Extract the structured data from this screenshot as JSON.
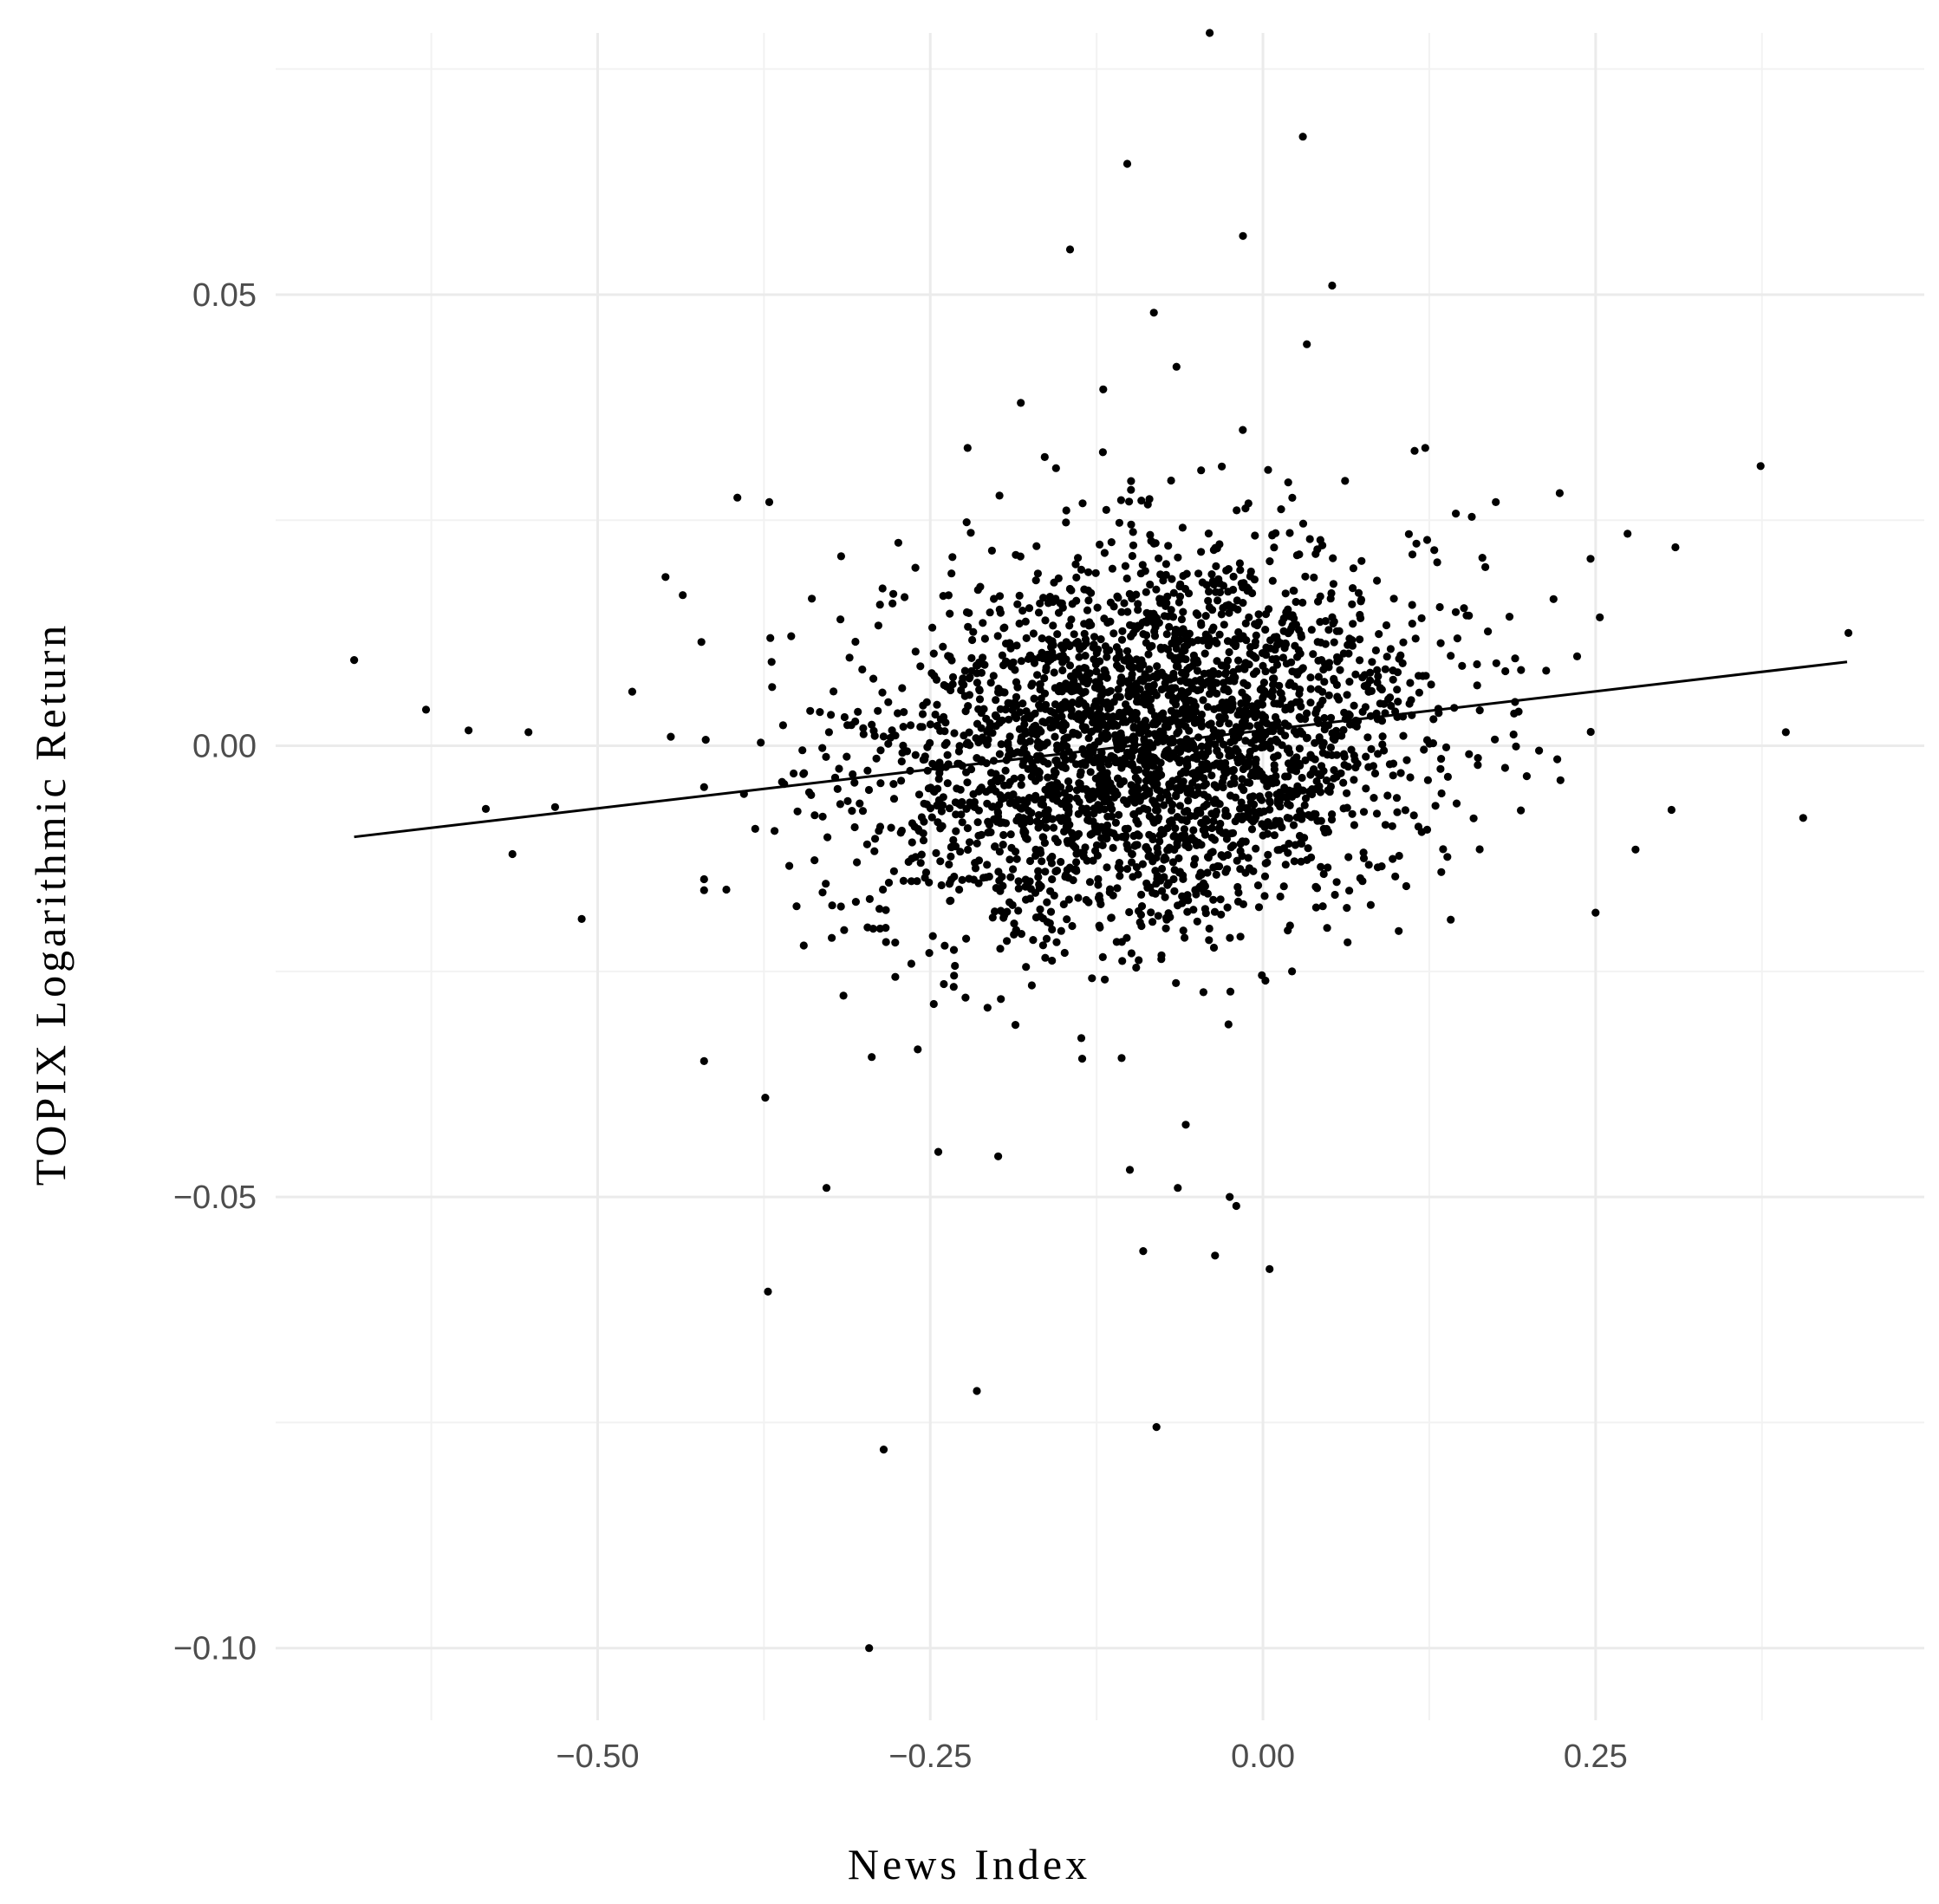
{
  "chart_data": {
    "type": "scatter",
    "title": "",
    "xlabel": "News Index",
    "ylabel": "TOPIX Logarithmic Return",
    "xlim": [
      -0.742,
      0.497
    ],
    "ylim": [
      -0.108,
      0.079
    ],
    "x_ticks": [
      -0.5,
      -0.25,
      0.0,
      0.25
    ],
    "x_tick_labels": [
      "−0.50",
      "−0.25",
      "0.00",
      "0.25"
    ],
    "y_ticks": [
      0.05,
      0.0,
      -0.05,
      -0.1
    ],
    "y_tick_labels": [
      "0.05",
      "0.00",
      "−0.05",
      "−0.10"
    ],
    "x_minor_ticks": [
      -0.625,
      -0.375,
      -0.125,
      0.125,
      0.375
    ],
    "y_minor_ticks": [
      0.075,
      0.025,
      -0.025,
      -0.075
    ],
    "grid": true,
    "legend": "none",
    "point_color": "#000000",
    "n_points_approx": 3000,
    "fit_line": {
      "type": "linear",
      "x": [
        -0.683,
        0.439
      ],
      "y": [
        -0.0101,
        0.0093
      ]
    },
    "series": [
      {
        "points": [
          [
            -0.683,
            0.0095
          ],
          [
            -0.629,
            0.004
          ],
          [
            -0.597,
            0.0017
          ],
          [
            -0.584,
            -0.007
          ],
          [
            -0.564,
            -0.012
          ],
          [
            -0.552,
            0.0015
          ],
          [
            -0.532,
            -0.0068
          ],
          [
            -0.512,
            -0.0192
          ],
          [
            -0.474,
            0.006
          ],
          [
            -0.449,
            0.0187
          ],
          [
            -0.445,
            0.001
          ],
          [
            -0.436,
            0.0167
          ],
          [
            -0.422,
            0.0115
          ],
          [
            -0.395,
            0.0275
          ],
          [
            -0.374,
            -0.039
          ],
          [
            -0.372,
            -0.0605
          ],
          [
            -0.371,
            0.027
          ],
          [
            -0.328,
            -0.049
          ],
          [
            -0.317,
            0.021
          ],
          [
            -0.296,
            -0.1
          ],
          [
            -0.294,
            -0.0345
          ],
          [
            -0.285,
            -0.078
          ],
          [
            -0.274,
            0.0225
          ],
          [
            -0.244,
            -0.045
          ],
          [
            -0.222,
            0.033
          ],
          [
            -0.215,
            -0.0715
          ],
          [
            -0.199,
            -0.0455
          ],
          [
            -0.182,
            0.038
          ],
          [
            -0.164,
            0.032
          ],
          [
            -0.145,
            0.055
          ],
          [
            -0.12,
            0.0395
          ],
          [
            -0.102,
            0.0645
          ],
          [
            -0.1,
            -0.047
          ],
          [
            -0.09,
            -0.056
          ],
          [
            -0.082,
            0.048
          ],
          [
            -0.08,
            -0.0755
          ],
          [
            -0.065,
            0.042
          ],
          [
            -0.064,
            -0.049
          ],
          [
            -0.058,
            -0.042
          ],
          [
            -0.04,
            0.079
          ],
          [
            -0.036,
            -0.0565
          ],
          [
            -0.025,
            -0.05
          ],
          [
            -0.02,
            -0.051
          ],
          [
            -0.015,
            0.0565
          ],
          [
            0.005,
            -0.058
          ],
          [
            0.03,
            0.0675
          ],
          [
            0.033,
            0.0445
          ],
          [
            0.052,
            0.051
          ],
          [
            0.122,
            0.033
          ],
          [
            0.175,
            0.027
          ],
          [
            0.223,
            0.028
          ],
          [
            0.25,
            -0.0185
          ],
          [
            0.274,
            0.0235
          ],
          [
            0.28,
            -0.0115
          ],
          [
            0.31,
            0.022
          ],
          [
            0.374,
            0.031
          ],
          [
            0.393,
            0.0015
          ],
          [
            0.406,
            -0.008
          ],
          [
            0.44,
            0.0125
          ]
        ]
      }
    ]
  }
}
